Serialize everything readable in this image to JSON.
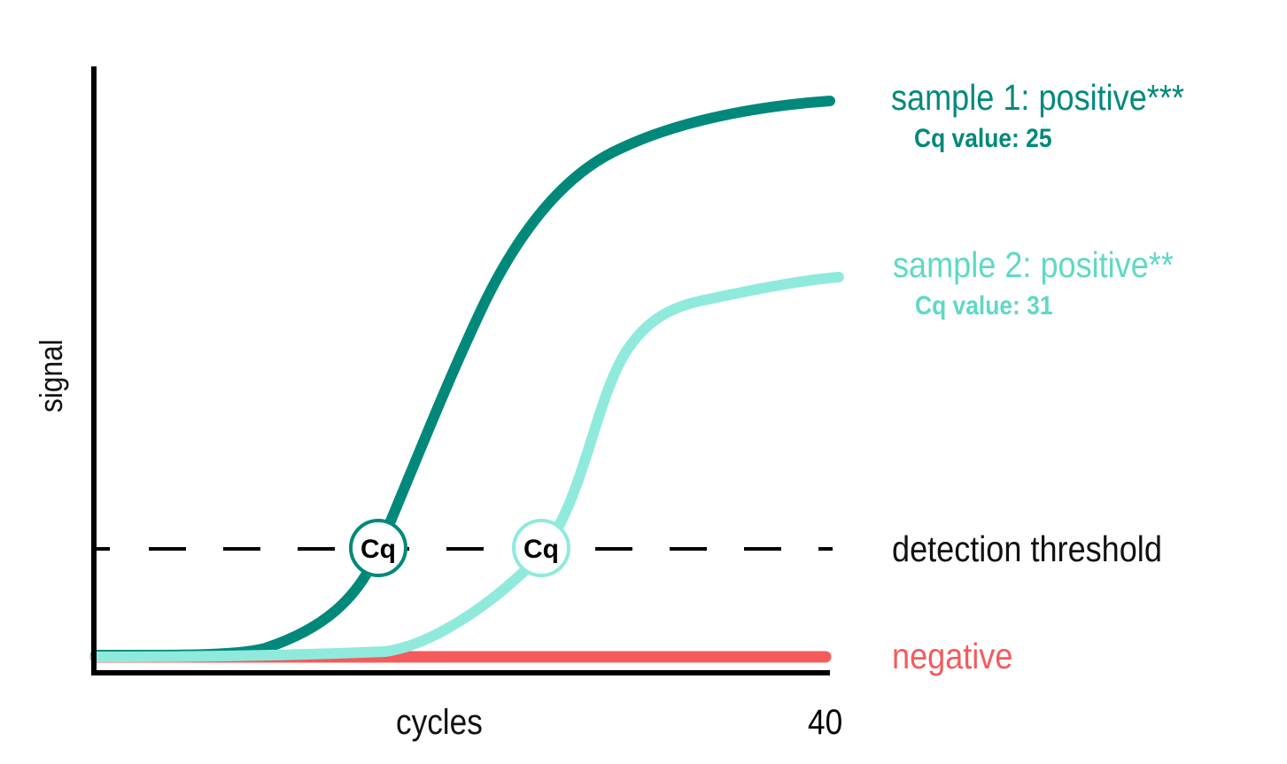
{
  "axes": {
    "y_label": "signal",
    "x_label": "cycles",
    "x_max_label": "40"
  },
  "threshold": {
    "label": "detection threshold"
  },
  "samples": [
    {
      "title": "sample 1: positive***",
      "cq_text": "Cq value: 25",
      "marker": "Cq",
      "color": "#00897B"
    },
    {
      "title": "sample 2: positive**",
      "cq_text": "Cq value: 31",
      "marker": "Cq",
      "color": "#8FEADC"
    }
  ],
  "negative": {
    "label": "negative",
    "color": "#F45B5B"
  },
  "colors": {
    "axis": "#000000",
    "threshold_line": "#000000",
    "threshold_label": "#111111"
  }
}
